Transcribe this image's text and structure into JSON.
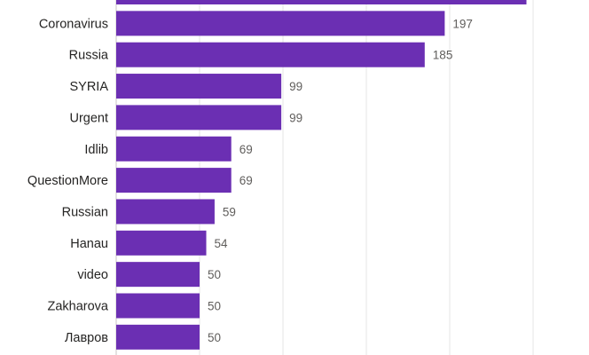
{
  "chart_data": {
    "type": "bar",
    "orientation": "horizontal",
    "categories": [
      "",
      "Coronavirus",
      "Russia",
      "SYRIA",
      "Urgent",
      "Idlib",
      "QuestionMore",
      "Russian",
      "Hanau",
      "video",
      "Zakharova",
      "Лавров"
    ],
    "values": [
      246,
      197,
      185,
      99,
      99,
      69,
      69,
      59,
      54,
      50,
      50,
      50
    ],
    "data_labels": [
      "",
      "197",
      "185",
      "99",
      "99",
      "69",
      "69",
      "59",
      "54",
      "50",
      "50",
      "50"
    ],
    "xlim": [
      0,
      250
    ],
    "grid": true,
    "bar_color": "#6b2fb3"
  }
}
